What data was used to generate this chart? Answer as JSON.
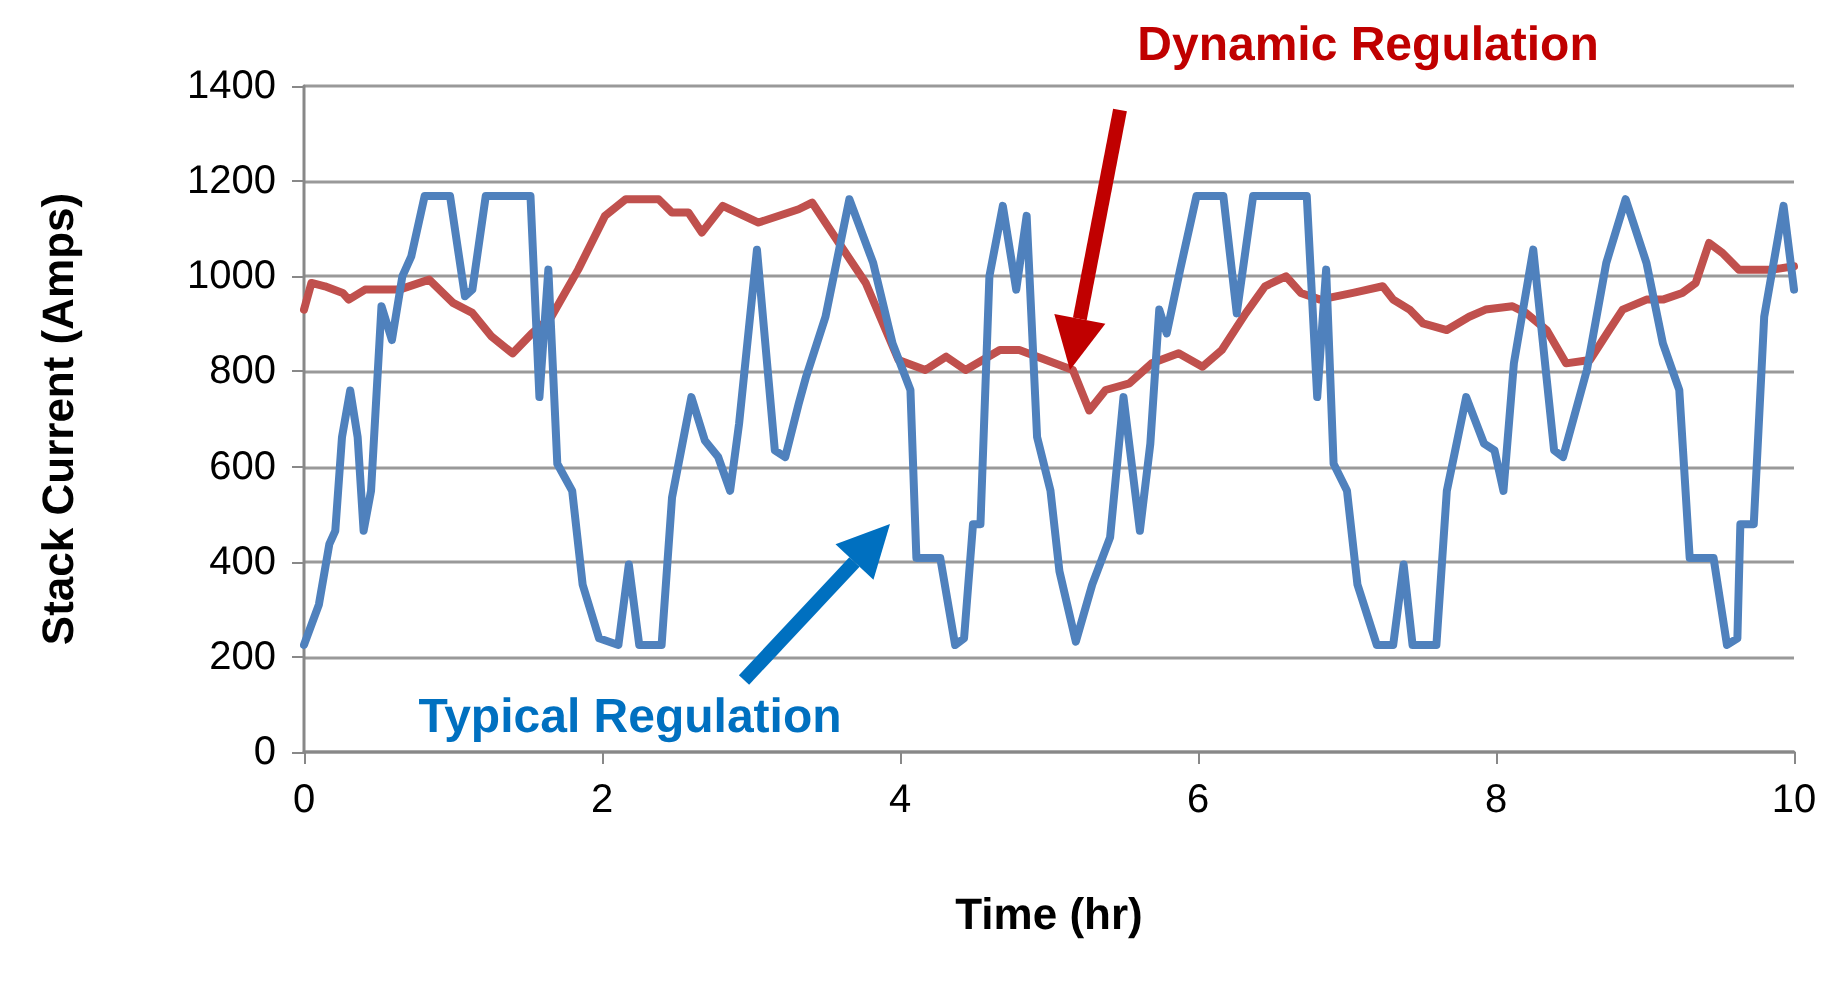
{
  "chart_data": {
    "type": "line",
    "xlabel": "Time (hr)",
    "ylabel": "Stack Current (Amps)",
    "xlim": [
      0,
      10
    ],
    "xticks": [
      0,
      2,
      4,
      6,
      8,
      10
    ],
    "ylim": [
      0,
      1400
    ],
    "yticks": [
      0,
      200,
      400,
      600,
      800,
      1000,
      1200,
      1400
    ],
    "grid": "y",
    "marker": "none",
    "line_style": "solid",
    "annotations": [
      "Dynamic Regulation",
      "Typical Regulation"
    ],
    "series": [
      {
        "color": "#c0504d",
        "x": [
          0,
          0.05,
          0.14,
          0.26,
          0.3,
          0.41,
          0.64,
          0.84,
          1.0,
          1.13,
          1.26,
          1.4,
          1.53,
          1.66,
          1.84,
          2.02,
          2.16,
          2.38,
          2.47,
          2.58,
          2.67,
          2.81,
          3.05,
          3.32,
          3.41,
          3.59,
          3.77,
          3.99,
          4.17,
          4.31,
          4.44,
          4.67,
          4.8,
          4.98,
          5.16,
          5.27,
          5.38,
          5.54,
          5.69,
          5.87,
          6.03,
          6.16,
          6.32,
          6.45,
          6.59,
          6.69,
          6.82,
          7.04,
          7.24,
          7.31,
          7.42,
          7.51,
          7.67,
          7.82,
          7.93,
          8.11,
          8.2,
          8.34,
          8.47,
          8.63,
          8.76,
          8.85,
          9.01,
          9.12,
          9.25,
          9.34,
          9.43,
          9.52,
          9.63,
          9.85,
          10.0
        ],
        "values": [
          930,
          986,
          979,
          965,
          951,
          972,
          972,
          993,
          944,
          923,
          873,
          838,
          880,
          915,
          1014,
          1127,
          1162,
          1162,
          1134,
          1134,
          1092,
          1148,
          1113,
          1141,
          1155,
          1070,
          986,
          824,
          803,
          831,
          803,
          845,
          845,
          824,
          803,
          718,
          761,
          775,
          817,
          838,
          810,
          845,
          922,
          979,
          1000,
          965,
          951,
          965,
          979,
          951,
          930,
          901,
          887,
          915,
          930,
          937,
          923,
          887,
          817,
          824,
          887,
          930,
          951,
          951,
          965,
          986,
          1070,
          1049,
          1014,
          1014,
          1021
        ]
      },
      {
        "color": "#4f81bd",
        "x": [
          0,
          0.1,
          0.17,
          0.21,
          0.255,
          0.31,
          0.36,
          0.4,
          0.45,
          0.52,
          0.59,
          0.66,
          0.72,
          0.81,
          0.98,
          1.08,
          1.13,
          1.22,
          1.52,
          1.58,
          1.64,
          1.7,
          1.8,
          1.87,
          1.98,
          2.11,
          2.18,
          2.25,
          2.4,
          2.47,
          2.6,
          2.69,
          2.78,
          2.86,
          2.92,
          3.04,
          3.16,
          3.23,
          3.32,
          3.37,
          3.5,
          3.66,
          3.82,
          3.95,
          4.07,
          4.11,
          4.27,
          4.37,
          4.43,
          4.49,
          4.54,
          4.6,
          4.69,
          4.78,
          4.85,
          4.92,
          5.01,
          5.07,
          5.18,
          5.29,
          5.41,
          5.5,
          5.61,
          5.68,
          5.74,
          5.79,
          5.88,
          5.99,
          6.17,
          6.26,
          6.37,
          6.68,
          6.73,
          6.8,
          6.86,
          6.91,
          7.0,
          7.07,
          7.2,
          7.31,
          7.38,
          7.44,
          7.6,
          7.67,
          7.8,
          7.92,
          7.99,
          8.05,
          8.12,
          8.25,
          8.39,
          8.45,
          8.61,
          8.74,
          8.87,
          9.01,
          9.12,
          9.23,
          9.3,
          9.46,
          9.55,
          9.62,
          9.64,
          9.73,
          9.8,
          9.93,
          10.0
        ],
        "values": [
          225,
          310,
          437,
          465,
          662,
          760,
          662,
          465,
          549,
          937,
          866,
          1000,
          1042,
          1169,
          1169,
          958,
          972,
          1169,
          1169,
          746,
          1014,
          606,
          549,
          352,
          239,
          225,
          394,
          225,
          225,
          535,
          746,
          655,
          620,
          549,
          690,
          1056,
          634,
          620,
          732,
          789,
          915,
          1162,
          1028,
          859,
          761,
          408,
          408,
          225,
          239,
          479,
          479,
          1000,
          1148,
          972,
          1127,
          662,
          549,
          380,
          232,
          352,
          451,
          746,
          465,
          648,
          930,
          880,
          1014,
          1169,
          1169,
          922,
          1169,
          1169,
          1169,
          746,
          1014,
          606,
          549,
          352,
          225,
          225,
          394,
          225,
          225,
          549,
          746,
          648,
          634,
          549,
          817,
          1056,
          634,
          620,
          803,
          1028,
          1162,
          1028,
          859,
          761,
          408,
          408,
          225,
          239,
          479,
          479,
          915,
          1148,
          972
        ]
      }
    ]
  }
}
